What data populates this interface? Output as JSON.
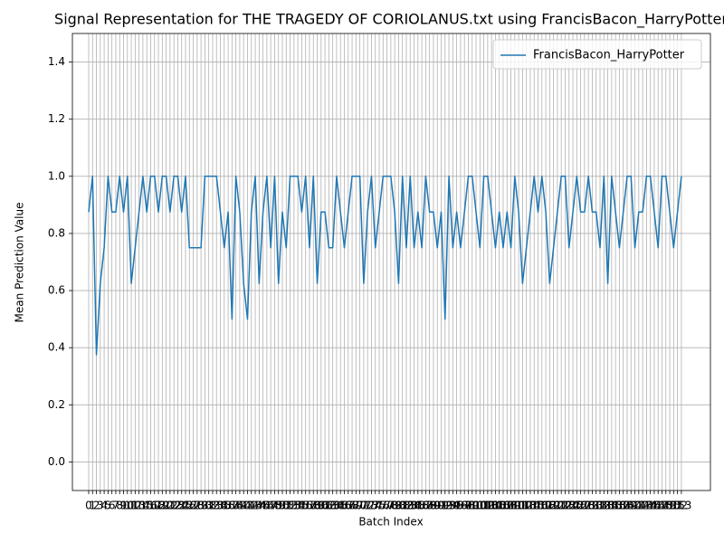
{
  "chart_data": {
    "type": "line",
    "title": "Signal Representation for THE TRAGEDY OF CORIOLANUS.txt using FrancisBacon_HarryPotter",
    "x_label": "Batch Index",
    "y_label": "Mean Prediction Value",
    "x": [
      0,
      1,
      2,
      3,
      4,
      5,
      6,
      7,
      8,
      9,
      10,
      11,
      12,
      13,
      14,
      15,
      16,
      17,
      18,
      19,
      20,
      21,
      22,
      23,
      24,
      25,
      26,
      27,
      28,
      29,
      30,
      31,
      32,
      33,
      34,
      35,
      36,
      37,
      38,
      39,
      40,
      41,
      42,
      43,
      44,
      45,
      46,
      47,
      48,
      49,
      50,
      51,
      52,
      53,
      54,
      55,
      56,
      57,
      58,
      59,
      60,
      61,
      62,
      63,
      64,
      65,
      66,
      67,
      68,
      69,
      70,
      71,
      72,
      73,
      74,
      75,
      76,
      77,
      78,
      79,
      80,
      81,
      82,
      83,
      84,
      85,
      86,
      87,
      88,
      89,
      90,
      91,
      92,
      93,
      94,
      95,
      96,
      97,
      98,
      99,
      100,
      101,
      102,
      103,
      104,
      105,
      106,
      107,
      108,
      109,
      110,
      111,
      112,
      113,
      114,
      115,
      116,
      117,
      118,
      119,
      120,
      121,
      122,
      123,
      124,
      125,
      126,
      127,
      128,
      129,
      130,
      131,
      132,
      133,
      134,
      135,
      136,
      137,
      138,
      139,
      140,
      141,
      142,
      143,
      144,
      145,
      146,
      147,
      148,
      149,
      150,
      151,
      152,
      153
    ],
    "series": [
      {
        "name": "FrancisBacon_HarryPotter",
        "color": "#1f77b4",
        "values": [
          0.875,
          1.0,
          0.375,
          0.625,
          0.75,
          1.0,
          0.875,
          0.875,
          1.0,
          0.875,
          1.0,
          0.625,
          0.75,
          0.875,
          1.0,
          0.875,
          1.0,
          1.0,
          0.875,
          1.0,
          1.0,
          0.875,
          1.0,
          1.0,
          0.875,
          1.0,
          0.75,
          0.75,
          0.75,
          0.75,
          1.0,
          1.0,
          1.0,
          1.0,
          0.875,
          0.75,
          0.875,
          0.5,
          1.0,
          0.875,
          0.625,
          0.5,
          0.875,
          1.0,
          0.625,
          0.875,
          1.0,
          0.75,
          1.0,
          0.625,
          0.875,
          0.75,
          1.0,
          1.0,
          1.0,
          0.875,
          1.0,
          0.75,
          1.0,
          0.625,
          0.875,
          0.875,
          0.75,
          0.75,
          1.0,
          0.875,
          0.75,
          0.875,
          1.0,
          1.0,
          1.0,
          0.625,
          0.875,
          1.0,
          0.75,
          0.875,
          1.0,
          1.0,
          1.0,
          0.875,
          0.625,
          1.0,
          0.75,
          1.0,
          0.75,
          0.875,
          0.75,
          1.0,
          0.875,
          0.875,
          0.75,
          0.875,
          0.5,
          1.0,
          0.75,
          0.875,
          0.75,
          0.875,
          1.0,
          1.0,
          0.875,
          0.75,
          1.0,
          1.0,
          0.875,
          0.75,
          0.875,
          0.75,
          0.875,
          0.75,
          1.0,
          0.875,
          0.625,
          0.75,
          0.875,
          1.0,
          0.875,
          1.0,
          0.875,
          0.625,
          0.75,
          0.875,
          1.0,
          1.0,
          0.75,
          0.875,
          1.0,
          0.875,
          0.875,
          1.0,
          0.875,
          0.875,
          0.75,
          1.0,
          0.625,
          1.0,
          0.875,
          0.75,
          0.875,
          1.0,
          1.0,
          0.75,
          0.875,
          0.875,
          1.0,
          1.0,
          0.875,
          0.75,
          1.0,
          1.0,
          0.875,
          0.75,
          0.875,
          1.0
        ]
      }
    ],
    "xlim": [
      -4.2,
      160.5
    ],
    "xticks": [
      0,
      1,
      2,
      3,
      4,
      5,
      6,
      7,
      8,
      9,
      10,
      11,
      12,
      13,
      14,
      15,
      16,
      17,
      18,
      19,
      20,
      21,
      22,
      23,
      24,
      25,
      26,
      27,
      28,
      29,
      30,
      31,
      32,
      33,
      34,
      35,
      36,
      37,
      38,
      39,
      40,
      41,
      42,
      43,
      44,
      45,
      46,
      47,
      48,
      49,
      50,
      51,
      52,
      53,
      54,
      55,
      56,
      57,
      58,
      59,
      60,
      61,
      62,
      63,
      64,
      65,
      66,
      67,
      68,
      69,
      70,
      71,
      72,
      73,
      74,
      75,
      76,
      77,
      78,
      79,
      80,
      81,
      82,
      83,
      84,
      85,
      86,
      87,
      88,
      89,
      90,
      91,
      92,
      93,
      94,
      95,
      96,
      97,
      98,
      99,
      100,
      101,
      102,
      103,
      104,
      105,
      106,
      107,
      108,
      109,
      110,
      111,
      112,
      113,
      114,
      115,
      116,
      117,
      118,
      119,
      120,
      121,
      122,
      123,
      124,
      125,
      126,
      127,
      128,
      129,
      130,
      131,
      132,
      133,
      134,
      135,
      136,
      137,
      138,
      139,
      140,
      141,
      142,
      143,
      144,
      145,
      146,
      147,
      148,
      149,
      150,
      151,
      152,
      153
    ],
    "ylim": [
      -0.1,
      1.5
    ],
    "yticks": [
      {
        "value": 0,
        "label": "0.0"
      },
      {
        "value": 0.2,
        "label": "0.2"
      },
      {
        "value": 0.4,
        "label": "0.4"
      },
      {
        "value": 0.6,
        "label": "0.6"
      },
      {
        "value": 0.8,
        "label": "0.8"
      },
      {
        "value": 1,
        "label": "1.0"
      },
      {
        "value": 1.2,
        "label": "1.2"
      },
      {
        "value": 1.4,
        "label": "1.4"
      }
    ],
    "grid": true,
    "legend": "upper right"
  }
}
